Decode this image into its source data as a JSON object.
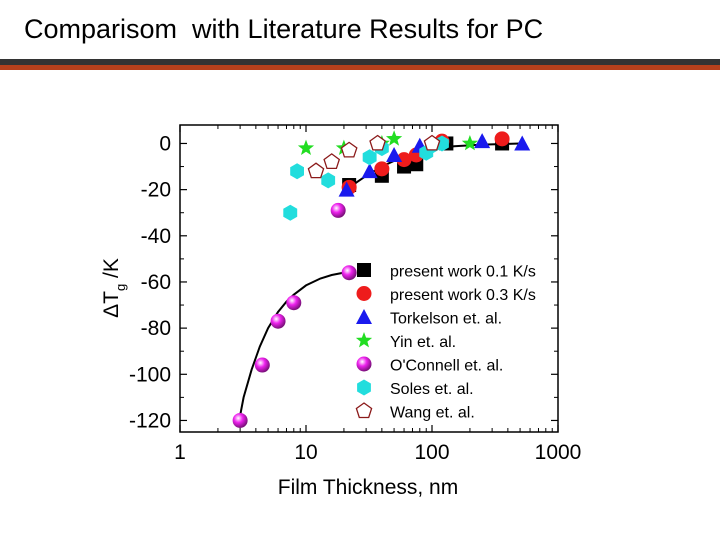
{
  "slide": {
    "title": "Comparisom  with Literature Results for PC"
  },
  "colors": {
    "title_rule_dark": "#333333",
    "title_rule_red": "#b5401c"
  },
  "chart_data": {
    "type": "scatter",
    "xscale": "log",
    "xlabel": "Film Thickness, nm",
    "ylabel_main": "ΔT",
    "ylabel_sub": "g",
    "ylabel_tail": " /K",
    "xlim": [
      1,
      1000
    ],
    "ylim": [
      -125,
      8
    ],
    "xticks": [
      1,
      10,
      100,
      1000
    ],
    "xtick_labels": [
      "1",
      "10",
      "100",
      "1000"
    ],
    "yticks": [
      0,
      -20,
      -40,
      -60,
      -80,
      -100,
      -120
    ],
    "ytick_labels": [
      "0",
      "-20",
      "-40",
      "-60",
      "-80",
      "-100",
      "-120"
    ],
    "legend_position": "right",
    "series": [
      {
        "name": "present work 0.1 K/s",
        "marker": "square",
        "color": "#000000",
        "points": [
          [
            22,
            -18
          ],
          [
            40,
            -14
          ],
          [
            60,
            -10
          ],
          [
            75,
            -9
          ],
          [
            130,
            0
          ],
          [
            360,
            0
          ]
        ]
      },
      {
        "name": "present work 0.3 K/s",
        "marker": "circle",
        "color": "#ee1c1c",
        "points": [
          [
            22,
            -19
          ],
          [
            40,
            -11
          ],
          [
            60,
            -7
          ],
          [
            75,
            -5
          ],
          [
            120,
            1
          ],
          [
            360,
            2
          ]
        ]
      },
      {
        "name": "Torkelson et. al.",
        "marker": "triangle",
        "color": "#1a1aee",
        "points": [
          [
            21,
            -20
          ],
          [
            32,
            -12
          ],
          [
            50,
            -5
          ],
          [
            80,
            -1
          ],
          [
            250,
            1
          ],
          [
            520,
            0
          ]
        ]
      },
      {
        "name": "Yin et. al.",
        "marker": "star",
        "color": "#22dd22",
        "points": [
          [
            10,
            -2
          ],
          [
            20,
            -2
          ],
          [
            40,
            0
          ],
          [
            50,
            2
          ],
          [
            200,
            0
          ]
        ]
      },
      {
        "name": "O'Connell et. al.",
        "marker": "sphere",
        "color": "#ee22ee",
        "points": [
          [
            3,
            -120
          ],
          [
            4.5,
            -96
          ],
          [
            6,
            -77
          ],
          [
            8,
            -69
          ],
          [
            18,
            -29
          ],
          [
            22,
            -56
          ]
        ]
      },
      {
        "name": "Soles et. al.",
        "marker": "hexagon",
        "color": "#22dddd",
        "points": [
          [
            7.5,
            -30
          ],
          [
            8.5,
            -12
          ],
          [
            15,
            -16
          ],
          [
            32,
            -6
          ],
          [
            40,
            -2
          ],
          [
            90,
            -4
          ],
          [
            100,
            -1
          ],
          [
            120,
            0
          ]
        ]
      },
      {
        "name": "Wang et. al.",
        "marker": "pentagon",
        "color": "#8b1a1a",
        "points": [
          [
            12,
            -12
          ],
          [
            16,
            -8
          ],
          [
            22,
            -3
          ],
          [
            37,
            0
          ],
          [
            100,
            0
          ]
        ]
      }
    ],
    "fit_curves": [
      {
        "points": [
          [
            2.9,
            -122
          ],
          [
            3.2,
            -110
          ],
          [
            3.7,
            -98
          ],
          [
            4.3,
            -88
          ],
          [
            5,
            -80
          ],
          [
            6,
            -73
          ],
          [
            7,
            -68.5
          ],
          [
            8,
            -65.5
          ],
          [
            10,
            -61.5
          ],
          [
            13,
            -58.5
          ],
          [
            16,
            -57
          ],
          [
            22,
            -55.5
          ]
        ]
      },
      {
        "points": [
          [
            20,
            -22
          ],
          [
            25,
            -17
          ],
          [
            30,
            -14
          ],
          [
            40,
            -10
          ],
          [
            50,
            -7.5
          ],
          [
            70,
            -4.5
          ],
          [
            100,
            -2.5
          ],
          [
            150,
            -1.2
          ],
          [
            250,
            -0.5
          ],
          [
            500,
            0
          ]
        ]
      }
    ]
  }
}
